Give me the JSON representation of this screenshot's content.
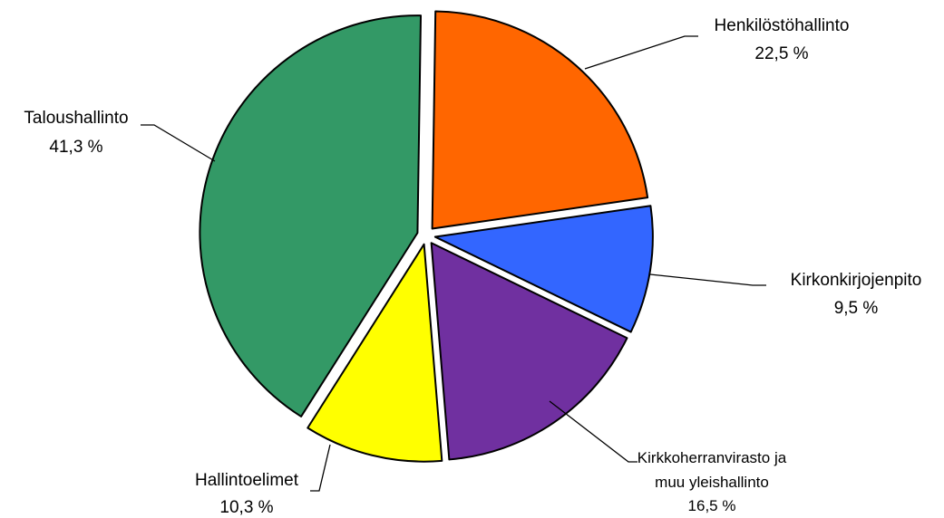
{
  "chart_data": {
    "type": "pie",
    "title": "",
    "slices": [
      {
        "label": "Henkilöstöhallinto",
        "value": 22.5,
        "value_label": "22,5 %",
        "color": "#FF6600"
      },
      {
        "label": "Kirkonkirjojenpito",
        "value": 9.5,
        "value_label": "9,5 %",
        "color": "#3366FF"
      },
      {
        "label": "Kirkkoherranvirasto ja",
        "label_line2": "muu yleishallinto",
        "value": 16.5,
        "value_label": "16,5 %",
        "color": "#7030A0"
      },
      {
        "label": "Hallintoelimet",
        "value": 10.3,
        "value_label": "10,3 %",
        "color": "#FFFF00"
      },
      {
        "label": "Taloushallinto",
        "value": 41.3,
        "value_label": "41,3 %",
        "color": "#339966"
      }
    ]
  }
}
